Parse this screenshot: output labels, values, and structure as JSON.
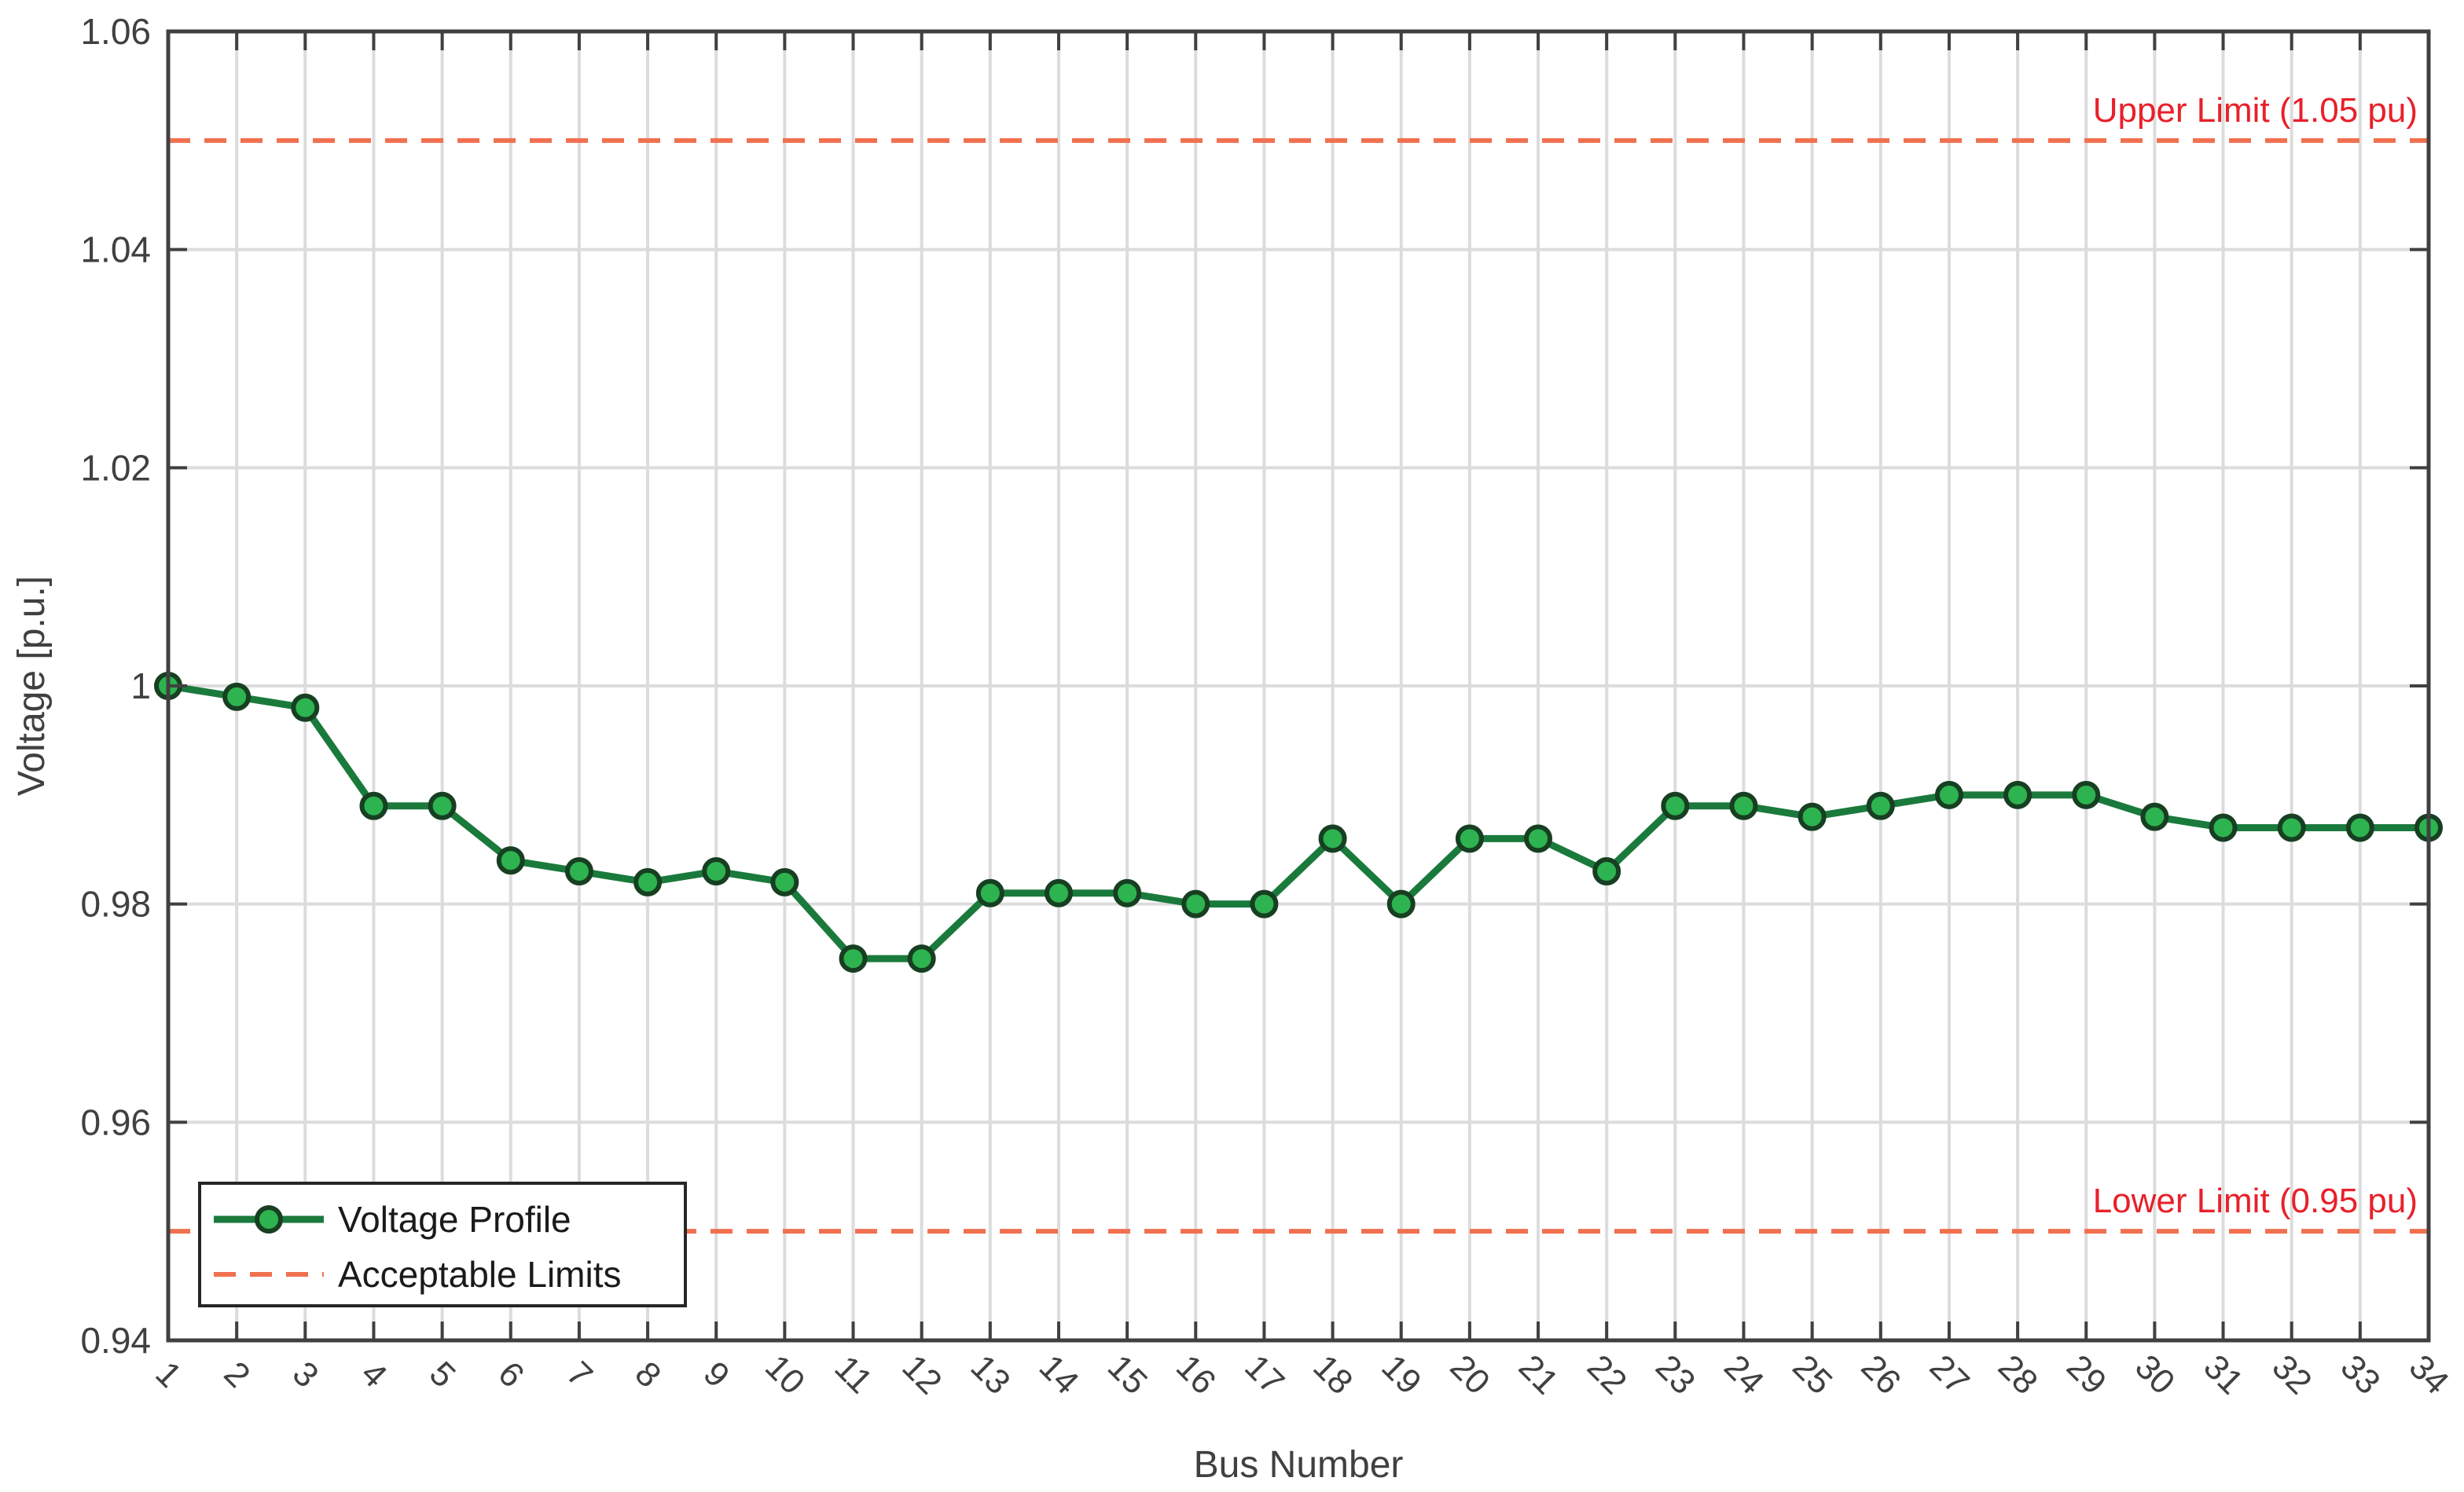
{
  "chart_data": {
    "type": "line",
    "title": "",
    "xlabel": "Bus Number",
    "ylabel": "Voltage [p.u.]",
    "x": [
      1,
      2,
      3,
      4,
      5,
      6,
      7,
      8,
      9,
      10,
      11,
      12,
      13,
      14,
      15,
      16,
      17,
      18,
      19,
      20,
      21,
      22,
      23,
      24,
      25,
      26,
      27,
      28,
      29,
      30,
      31,
      32,
      33,
      34
    ],
    "xlim": [
      1,
      34
    ],
    "ylim": [
      0.94,
      1.06
    ],
    "yticks": [
      0.94,
      0.96,
      0.98,
      1,
      1.02,
      1.04,
      1.06
    ],
    "ytick_labels": [
      "0.94",
      "0.96",
      "0.98",
      "1",
      "1.02",
      "1.04",
      "1.06"
    ],
    "grid": true,
    "legend_position": "bottom-left",
    "series": [
      {
        "name": "Voltage Profile",
        "color": "#1a7a3c",
        "marker_color": "#2db34f",
        "values": [
          1.0,
          0.999,
          0.998,
          0.989,
          0.989,
          0.984,
          0.983,
          0.982,
          0.983,
          0.982,
          0.975,
          0.975,
          0.981,
          0.981,
          0.981,
          0.98,
          0.98,
          0.986,
          0.98,
          0.986,
          0.986,
          0.983,
          0.989,
          0.989,
          0.988,
          0.989,
          0.99,
          0.99,
          0.99,
          0.988,
          0.987,
          0.987,
          0.987,
          0.987
        ]
      }
    ],
    "limits": {
      "legend_label": "Acceptable Limits",
      "color": "#f07050",
      "text_color": "#e8202a",
      "upper": {
        "value": 1.05,
        "label": "Upper Limit (1.05 pu)"
      },
      "lower": {
        "value": 0.95,
        "label": "Lower Limit (0.95 pu)"
      }
    }
  }
}
